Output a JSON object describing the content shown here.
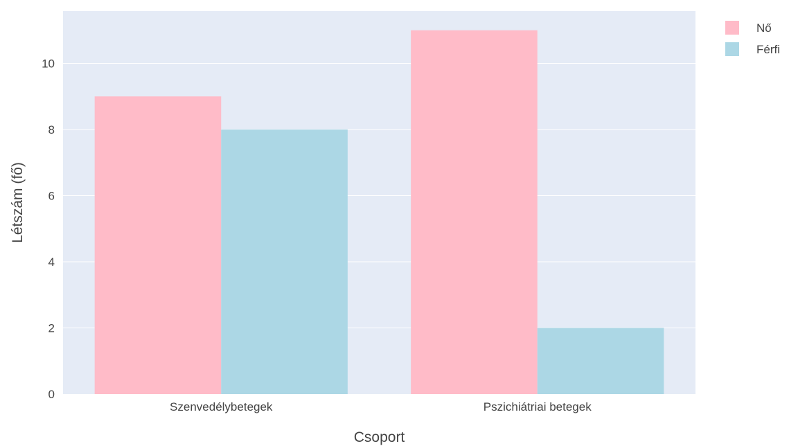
{
  "chart_data": {
    "type": "bar",
    "title": "",
    "xlabel": "Csoport",
    "ylabel": "Létszám (fő)",
    "categories": [
      "Szenvedélybetegek",
      "Pszichiátriai betegek"
    ],
    "series": [
      {
        "name": "Nő",
        "values": [
          9,
          11
        ],
        "color": "#ffbbc8"
      },
      {
        "name": "Férfi",
        "values": [
          8,
          2
        ],
        "color": "#acd7e5"
      }
    ],
    "ylim": [
      0,
      11.58
    ],
    "yticks": [
      0,
      2,
      4,
      6,
      8,
      10
    ],
    "grid": true,
    "legend": "top-right",
    "plot_background": "#e5ebf6",
    "gridline_color": "#ffffff"
  }
}
